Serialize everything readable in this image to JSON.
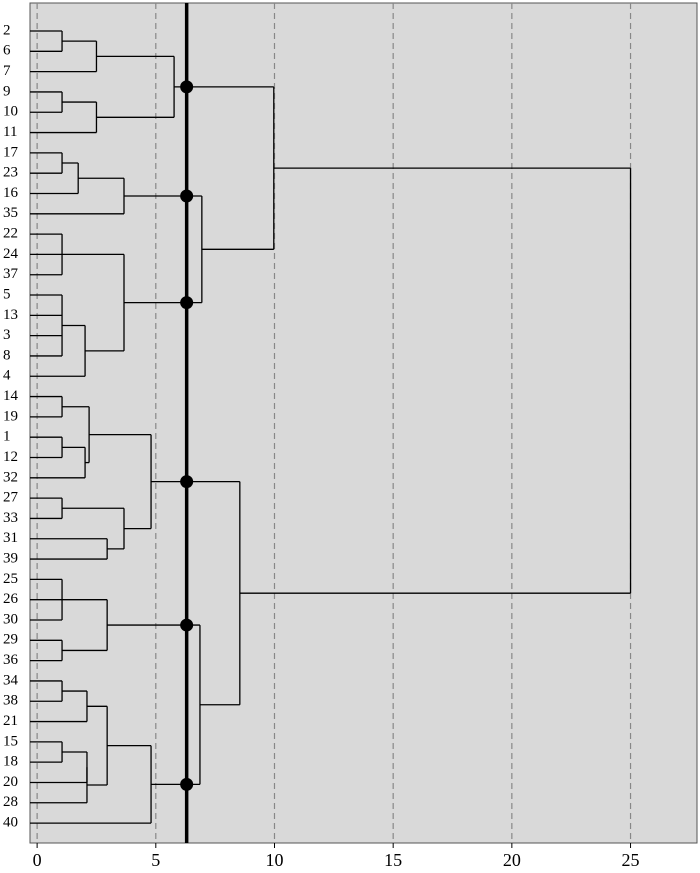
{
  "chart_data": {
    "type": "dendrogram",
    "xlim": [
      -0.3,
      27.8
    ],
    "xticks": [
      0,
      5,
      10,
      15,
      20,
      25
    ],
    "grid": true,
    "cut": 6.3,
    "tree": {
      "height": 25,
      "children": [
        {
          "height": 9.97,
          "children": [
            {
              "height": 5.77,
              "children": [
                {
                  "height": 2.5,
                  "children": [
                    {
                      "height": 1.05,
                      "children": [
                        {
                          "label": "2"
                        },
                        {
                          "label": "6"
                        }
                      ]
                    },
                    {
                      "label": "7"
                    }
                  ]
                },
                {
                  "height": 2.5,
                  "children": [
                    {
                      "height": 1.05,
                      "children": [
                        {
                          "label": "9"
                        },
                        {
                          "label": "10"
                        }
                      ]
                    },
                    {
                      "label": "11"
                    }
                  ]
                }
              ]
            },
            {
              "height": 6.94,
              "children": [
                {
                  "height": 3.66,
                  "children": [
                    {
                      "height": 1.73,
                      "children": [
                        {
                          "height": 1.05,
                          "children": [
                            {
                              "label": "17"
                            },
                            {
                              "label": "23"
                            }
                          ]
                        },
                        {
                          "label": "16"
                        }
                      ]
                    },
                    {
                      "label": "35"
                    }
                  ]
                },
                {
                  "height": 3.66,
                  "children": [
                    {
                      "height": 1.05,
                      "children": [
                        {
                          "label": "22"
                        },
                        {
                          "label": "24"
                        },
                        {
                          "label": "37"
                        }
                      ]
                    },
                    {
                      "height": 2.02,
                      "children": [
                        {
                          "height": 1.05,
                          "children": [
                            {
                              "label": "5"
                            },
                            {
                              "label": "13"
                            },
                            {
                              "label": "3"
                            },
                            {
                              "label": "8"
                            }
                          ]
                        },
                        {
                          "label": "4"
                        }
                      ]
                    }
                  ]
                }
              ]
            }
          ]
        },
        {
          "height": 8.54,
          "children": [
            {
              "height": 4.8,
              "children": [
                {
                  "height": 2.19,
                  "children": [
                    {
                      "height": 1.05,
                      "children": [
                        {
                          "label": "14"
                        },
                        {
                          "label": "19"
                        }
                      ]
                    },
                    {
                      "height": 2.02,
                      "children": [
                        {
                          "height": 1.05,
                          "children": [
                            {
                              "label": "1"
                            },
                            {
                              "label": "12"
                            }
                          ]
                        },
                        {
                          "label": "32"
                        }
                      ]
                    }
                  ]
                },
                {
                  "height": 3.66,
                  "children": [
                    {
                      "height": 1.05,
                      "children": [
                        {
                          "label": "27"
                        },
                        {
                          "label": "33"
                        }
                      ]
                    },
                    {
                      "height": 2.95,
                      "children": [
                        {
                          "label": "31"
                        },
                        {
                          "label": "39"
                        }
                      ]
                    }
                  ]
                }
              ]
            },
            {
              "height": 6.86,
              "children": [
                {
                  "height": 2.95,
                  "children": [
                    {
                      "height": 1.05,
                      "children": [
                        {
                          "label": "25"
                        },
                        {
                          "label": "26"
                        },
                        {
                          "label": "30"
                        }
                      ]
                    },
                    {
                      "height": 1.05,
                      "children": [
                        {
                          "label": "29"
                        },
                        {
                          "label": "36"
                        }
                      ]
                    }
                  ]
                },
                {
                  "height": 4.8,
                  "children": [
                    {
                      "height": 2.95,
                      "children": [
                        {
                          "height": 2.1,
                          "children": [
                            {
                              "height": 1.05,
                              "children": [
                                {
                                  "label": "34"
                                },
                                {
                                  "label": "38"
                                }
                              ]
                            },
                            {
                              "label": "21"
                            }
                          ]
                        },
                        {
                          "height": 2.1,
                          "children": [
                            {
                              "height": 2.1,
                              "children": [
                                {
                                  "height": 1.05,
                                  "children": [
                                    {
                                      "label": "15"
                                    },
                                    {
                                      "label": "18"
                                    }
                                  ]
                                },
                                {
                                  "label": "20"
                                }
                              ]
                            },
                            {
                              "label": "28"
                            }
                          ]
                        }
                      ]
                    },
                    {
                      "label": "40"
                    }
                  ]
                }
              ]
            }
          ]
        }
      ]
    }
  }
}
